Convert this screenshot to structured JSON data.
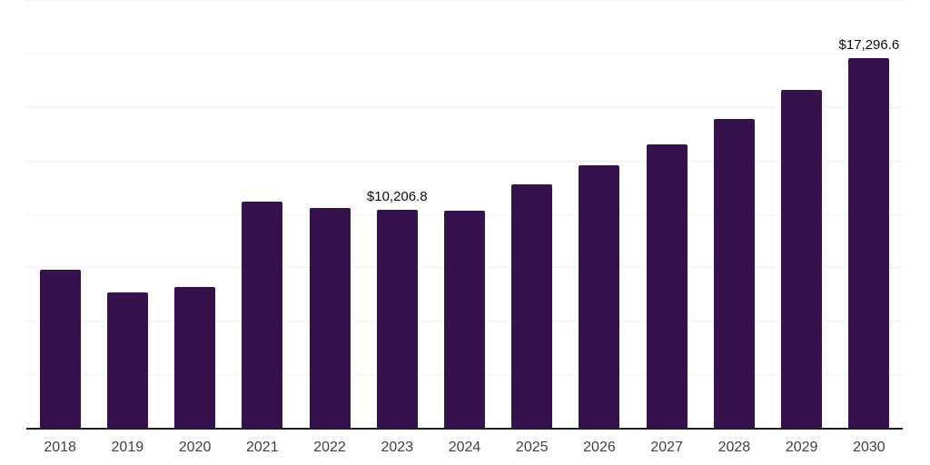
{
  "chart_data": {
    "type": "bar",
    "categories": [
      "2018",
      "2019",
      "2020",
      "2021",
      "2022",
      "2023",
      "2024",
      "2025",
      "2026",
      "2027",
      "2028",
      "2029",
      "2030"
    ],
    "values": [
      7370,
      6340,
      6590,
      10590,
      10260,
      10206.8,
      10150,
      11390,
      12270,
      13260,
      14430,
      15800,
      17296.6
    ],
    "data_labels": {
      "2023": "$10,206.8",
      "2030": "$17,296.6"
    },
    "title": "",
    "xlabel": "",
    "ylabel": "",
    "ylim": [
      0,
      20000
    ],
    "gridline_step": 2500,
    "grid": "horizontal",
    "legend": "none",
    "colors": {
      "bar": "#35124B",
      "background": "#ffffff",
      "gridline": "#f1f1f3",
      "axis_line": "#1f1f1f",
      "tick_label": "#404040",
      "data_label": "#0d0d0d"
    }
  }
}
